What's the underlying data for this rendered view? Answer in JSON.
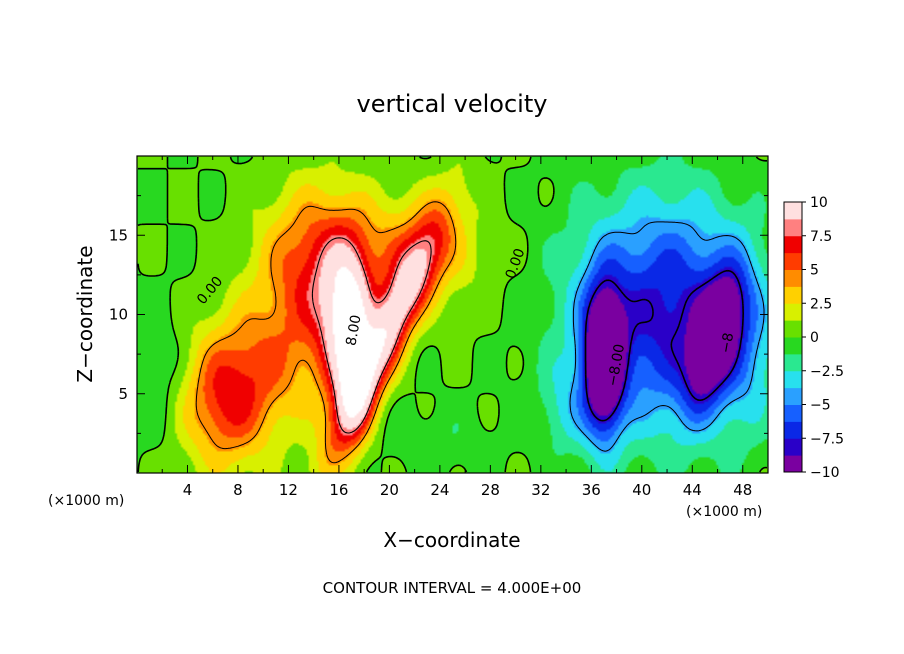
{
  "chart_data": {
    "type": "heatmap",
    "title": "vertical velocity",
    "xlabel": "X−coordinate",
    "ylabel": "Z−coordinate",
    "x_unit": "(×1000 m)",
    "footer": "CONTOUR INTERVAL = 4.000E+00",
    "xlim": [
      0,
      50
    ],
    "ylim": [
      0,
      20
    ],
    "x_ticks": [
      4,
      8,
      12,
      16,
      20,
      24,
      28,
      32,
      36,
      40,
      44,
      48
    ],
    "y_ticks": [
      5,
      10,
      15
    ],
    "colorbar": {
      "range": [
        -10,
        10
      ],
      "ticks": [
        {
          "value": 10,
          "label": "10"
        },
        {
          "value": 7.5,
          "label": "7.5"
        },
        {
          "value": 5,
          "label": "5"
        },
        {
          "value": 2.5,
          "label": "2.5"
        },
        {
          "value": 0,
          "label": "0"
        },
        {
          "value": -2.5,
          "label": "−2.5"
        },
        {
          "value": -5,
          "label": "−5"
        },
        {
          "value": -7.5,
          "label": "−7.5"
        },
        {
          "value": -10,
          "label": "−10"
        }
      ],
      "colors": [
        "#7a00a0",
        "#2a00c8",
        "#0a28e6",
        "#1660ff",
        "#2aa0ff",
        "#28e0ee",
        "#2ae890",
        "#28d820",
        "#68e000",
        "#d8f000",
        "#ffd000",
        "#ff8c00",
        "#ff3c00",
        "#f00000",
        "#ff8080",
        "#ffe0e0"
      ]
    },
    "contour_labels": [
      {
        "text": "0.00",
        "x": 5.8,
        "y": 11.5,
        "angle": -50
      },
      {
        "text": "0.00",
        "x": 30.0,
        "y": 13.2,
        "angle": -70
      },
      {
        "text": "8.00",
        "x": 17.2,
        "y": 9.0,
        "angle": -80
      },
      {
        "text": "−8.00",
        "x": 38.0,
        "y": 6.8,
        "angle": -80
      },
      {
        "text": "−8",
        "x": 46.8,
        "y": 8.2,
        "angle": -80
      }
    ],
    "blobs": [
      {
        "x": 7,
        "y": 4.5,
        "sx": 2.6,
        "sz": 3.0,
        "a": 6
      },
      {
        "x": 11,
        "y": 7,
        "sx": 3.5,
        "sz": 3,
        "a": 3
      },
      {
        "x": 14,
        "y": 13,
        "sx": 3.0,
        "sz": 3.5,
        "a": 6
      },
      {
        "x": 16.3,
        "y": 9.5,
        "sx": 1.4,
        "sz": 3.5,
        "a": 7
      },
      {
        "x": 22,
        "y": 14,
        "sx": 3.5,
        "sz": 2.5,
        "a": 4
      },
      {
        "x": 19.6,
        "y": 8.5,
        "sx": 1.3,
        "sz": 5.0,
        "a": 10,
        "tilt": 0.55
      },
      {
        "x": 17.2,
        "y": 7.5,
        "sx": 1.0,
        "sz": 3.5,
        "a": 7
      },
      {
        "x": 24,
        "y": 2,
        "sx": 3,
        "sz": 1.5,
        "a": -1
      },
      {
        "x": 37,
        "y": 7,
        "sx": 1.1,
        "sz": 3.2,
        "a": -12
      },
      {
        "x": 39,
        "y": 10,
        "sx": 4.0,
        "sz": 5.0,
        "a": -5
      },
      {
        "x": 45.8,
        "y": 8.5,
        "sx": 1.2,
        "sz": 2.8,
        "a": -9,
        "tilt": 0.3
      },
      {
        "x": 44,
        "y": 10,
        "sx": 3.5,
        "sz": 5.0,
        "a": -5
      },
      {
        "x": 48,
        "y": 8,
        "sx": 2.0,
        "sz": 4.0,
        "a": -3
      },
      {
        "x": 2,
        "y": 6,
        "sx": 2.0,
        "sz": 3.0,
        "a": -1.5
      },
      {
        "x": 34,
        "y": 4,
        "sx": 1.5,
        "sz": 2.0,
        "a": -2
      }
    ]
  }
}
